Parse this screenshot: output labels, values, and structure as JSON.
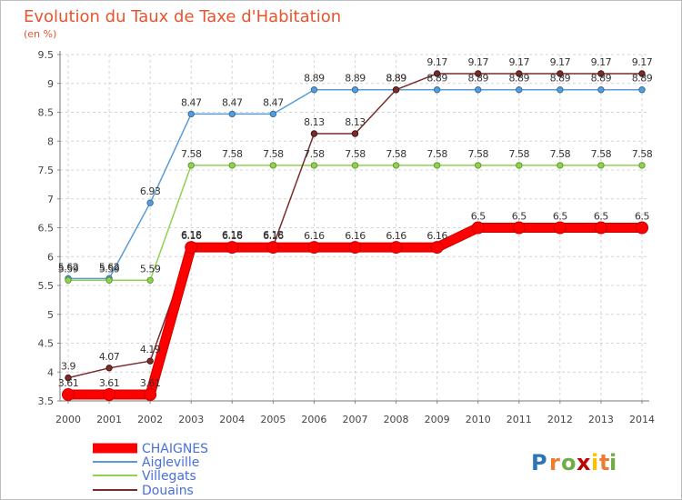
{
  "chart_data": {
    "type": "line",
    "title": "Evolution du Taux de Taxe d'Habitation",
    "subtitle": "(en %)",
    "xlabel": "",
    "ylabel": "",
    "x": [
      "2000",
      "2001",
      "2002",
      "2003",
      "2004",
      "2005",
      "2006",
      "2007",
      "2008",
      "2009",
      "2010",
      "2011",
      "2012",
      "2013",
      "2014"
    ],
    "ylim": [
      3.5,
      9.5
    ],
    "yticks": [
      "3.5",
      "4",
      "4.5",
      "5",
      "5.5",
      "6",
      "6.5",
      "7",
      "7.5",
      "8",
      "8.5",
      "9",
      "9.5"
    ],
    "grid": true,
    "legend_position": "bottom-left",
    "series": [
      {
        "name": "CHAIGNES",
        "color": "#ff0000",
        "values": [
          3.61,
          3.61,
          3.61,
          6.16,
          6.16,
          6.16,
          6.16,
          6.16,
          6.16,
          6.16,
          6.5,
          6.5,
          6.5,
          6.5,
          6.5
        ]
      },
      {
        "name": "Aigleville",
        "color": "#5b9bd5",
        "values": [
          5.62,
          5.62,
          6.93,
          8.47,
          8.47,
          8.47,
          8.89,
          8.89,
          8.89,
          8.89,
          8.89,
          8.89,
          8.89,
          8.89,
          8.89
        ]
      },
      {
        "name": "Villegats",
        "color": "#92d050",
        "values": [
          5.59,
          5.59,
          5.59,
          7.58,
          7.58,
          7.58,
          7.58,
          7.58,
          7.58,
          7.58,
          7.58,
          7.58,
          7.58,
          7.58,
          7.58
        ]
      },
      {
        "name": "Douains",
        "color": "#7b2b2b",
        "values": [
          3.9,
          4.07,
          4.19,
          6.18,
          6.18,
          6.18,
          8.13,
          8.13,
          8.89,
          9.17,
          9.17,
          9.17,
          9.17,
          9.17,
          9.17
        ]
      }
    ],
    "data_labels": [
      [
        "3.61",
        "3.61",
        "3.61",
        "6.16",
        "6.16",
        "6.16",
        "6.16",
        "6.16",
        "6.16",
        "6.16",
        "6.5",
        "6.5",
        "6.5",
        "6.5",
        "6.5"
      ],
      [
        "5.62",
        "5.62",
        "6.93",
        "8.47",
        "8.47",
        "8.47",
        "8.89",
        "8.89",
        "8.89",
        "8.89",
        "8.89",
        "8.89",
        "8.89",
        "8.89",
        "8.89"
      ],
      [
        "5.59",
        "5.59",
        "5.59",
        "7.58",
        "7.58",
        "7.58",
        "7.58",
        "7.58",
        "7.58",
        "7.58",
        "7.58",
        "7.58",
        "7.58",
        "7.58",
        "7.58"
      ],
      [
        "3.9",
        "4.07",
        "4.19",
        "6.18",
        "6.18",
        "6.18",
        "8.13",
        "8.13",
        "8.89",
        "9.17",
        "9.17",
        "9.17",
        "9.17",
        "9.17",
        "9.17"
      ]
    ]
  },
  "brand": {
    "letters": [
      "P",
      "r",
      "o",
      "x",
      "i",
      "t",
      "i"
    ],
    "colors": [
      "#2e75b6",
      "#ed7d31",
      "#70ad47",
      "#c00000",
      "#ffc000",
      "#ed7d31",
      "#70ad47"
    ]
  }
}
